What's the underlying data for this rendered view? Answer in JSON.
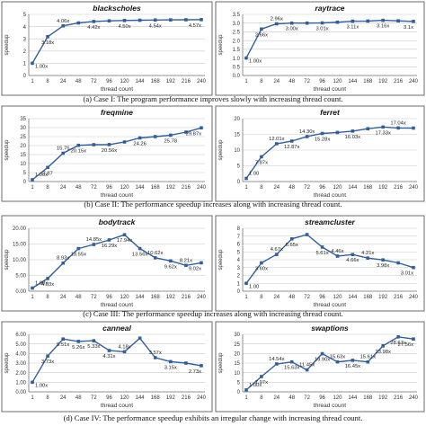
{
  "chart_data": [
    {
      "type": "line",
      "title": "blackscholes",
      "ylabel": "speedup",
      "xlabel": "thread count",
      "categories": [
        "1",
        "8",
        "24",
        "48",
        "72",
        "96",
        "120",
        "144",
        "168",
        "192",
        "216",
        "240"
      ],
      "values": [
        1.0,
        3.18,
        4.06,
        4.3,
        4.42,
        4.47,
        4.5,
        4.52,
        4.54,
        4.55,
        4.56,
        4.57
      ],
      "data_labels": {
        "0": "1.00x",
        "1": "3.18x",
        "2": "4.06x",
        "4": "4.42x",
        "6": "4.50x",
        "8": "4.54x",
        "11": "4.57x"
      },
      "ylim": [
        0,
        5
      ],
      "yticks": [
        "0",
        "1",
        "2",
        "3",
        "4",
        "5"
      ],
      "grid": true,
      "color": "#2f5f9c"
    },
    {
      "type": "line",
      "title": "raytrace",
      "ylabel": "speedup",
      "xlabel": "thread count",
      "categories": [
        "1",
        "8",
        "24",
        "48",
        "72",
        "96",
        "120",
        "144",
        "168",
        "192",
        "216",
        "240"
      ],
      "values": [
        1.0,
        2.66,
        2.96,
        3.0,
        3.0,
        3.01,
        3.05,
        3.11,
        3.12,
        3.16,
        3.13,
        3.1
      ],
      "data_labels": {
        "0": "1.00x",
        "1": "2.66x",
        "2": "2.96x",
        "3": "3.00x",
        "5": "3.01x",
        "7": "3.11x",
        "9": "3.16x",
        "11": "3.1x"
      },
      "ylim": [
        0,
        3.5
      ],
      "yticks": [
        "0.0",
        "0.5",
        "1.0",
        "1.5",
        "2.0",
        "2.5",
        "3.0",
        "3.5"
      ],
      "grid": true,
      "color": "#2f5f9c"
    },
    {
      "type": "line",
      "title": "freqmine",
      "ylabel": "speedup",
      "xlabel": "thread count",
      "categories": [
        "1",
        "8",
        "24",
        "48",
        "72",
        "96",
        "120",
        "144",
        "168",
        "192",
        "216",
        "240"
      ],
      "values": [
        1.0,
        7.87,
        15.75,
        20.15,
        20.5,
        20.56,
        22.0,
        24.26,
        25.0,
        25.78,
        27.5,
        29.87
      ],
      "data_labels": {
        "0": "1.00x",
        "1": "7.87",
        "2": "15.75",
        "3": "20.15x",
        "5": "20.56x",
        "7": "24.26",
        "9": "25.78",
        "11": "29.87x"
      },
      "ylim": [
        0,
        35
      ],
      "yticks": [
        "0",
        "5",
        "10",
        "15",
        "20",
        "25",
        "30",
        "35"
      ],
      "grid": true,
      "color": "#2f5f9c"
    },
    {
      "type": "line",
      "title": "ferret",
      "ylabel": "speedup",
      "xlabel": "thread count",
      "categories": [
        "1",
        "8",
        "24",
        "48",
        "72",
        "96",
        "120",
        "144",
        "168",
        "192",
        "216",
        "240"
      ],
      "values": [
        1.0,
        7.87,
        12.01,
        12.87,
        14.3,
        15.28,
        15.6,
        16.03,
        16.8,
        17.33,
        17.04,
        17.0
      ],
      "data_labels": {
        "0": "1.00",
        "1": "7.87x",
        "2": "12.01x",
        "3": "12.87x",
        "4": "14.30x",
        "5": "15.28x",
        "7": "16.03x",
        "9": "17.33x",
        "10": "17.04x"
      },
      "ylim": [
        0,
        20
      ],
      "yticks": [
        "0",
        "5",
        "10",
        "15",
        "20"
      ],
      "grid": true,
      "color": "#2f5f9c"
    },
    {
      "type": "line",
      "title": "bodytrack",
      "ylabel": "speedup",
      "xlabel": "thread count",
      "categories": [
        "1",
        "8",
        "24",
        "48",
        "72",
        "96",
        "120",
        "144",
        "168",
        "192",
        "216",
        "240"
      ],
      "values": [
        1.0,
        4.03,
        8.93,
        13.55,
        14.85,
        16.29,
        17.94,
        13.56,
        10.62,
        9.62,
        8.21,
        9.02
      ],
      "data_labels": {
        "0": "1.00x",
        "1": "4.03x",
        "2": "8.93x",
        "3": "13.55x",
        "4": "14.85x",
        "5": "16.29x",
        "6": "17.94x",
        "7": "13.56x",
        "8": "10.62x",
        "9": "9.62x",
        "10": "8.21x",
        "11": "9.02x"
      },
      "ylim": [
        0,
        20
      ],
      "yticks": [
        "0.00",
        "5.00",
        "10.00",
        "15.00",
        "20.00"
      ],
      "grid": true,
      "color": "#2f5f9c"
    },
    {
      "type": "line",
      "title": "streamcluster",
      "ylabel": "speedup",
      "xlabel": "thread count",
      "categories": [
        "1",
        "8",
        "24",
        "48",
        "72",
        "96",
        "120",
        "144",
        "168",
        "192",
        "216",
        "240"
      ],
      "values": [
        1.0,
        3.6,
        4.67,
        6.65,
        7.2,
        5.61,
        4.46,
        4.66,
        4.21,
        3.98,
        3.6,
        3.01
      ],
      "data_labels": {
        "0": "1.00",
        "1": "3.60x",
        "2": "4.67x",
        "3": "6.65x",
        "5": "5.61x",
        "6": "4.46x",
        "7": "4.66x",
        "8": "4.21x",
        "9": "3.98x",
        "11": "3.01x"
      },
      "ylim": [
        0,
        8
      ],
      "yticks": [
        "0",
        "1",
        "2",
        "3",
        "4",
        "5",
        "6",
        "7",
        "8"
      ],
      "grid": true,
      "color": "#2f5f9c"
    },
    {
      "type": "line",
      "title": "canneal",
      "ylabel": "speedup",
      "xlabel": "thread count",
      "categories": [
        "1",
        "8",
        "24",
        "48",
        "72",
        "96",
        "120",
        "144",
        "168",
        "192",
        "216",
        "240"
      ],
      "values": [
        1.0,
        3.73,
        5.51,
        5.26,
        5.33,
        4.31,
        4.18,
        5.6,
        3.57,
        3.15,
        3.0,
        2.73
      ],
      "data_labels": {
        "0": "1.00x",
        "1": "3.73x",
        "2": "5.51x",
        "3": "5.26x",
        "4": "5.33x",
        "5": "4.31x",
        "6": "4.18x",
        "8": "3.57x",
        "9": "3.15x",
        "11": "2.73x"
      },
      "ylim": [
        0,
        6
      ],
      "yticks": [
        "0.00",
        "1.00",
        "2.00",
        "3.00",
        "4.00",
        "5.00",
        "6.00"
      ],
      "grid": true,
      "color": "#2f5f9c"
    },
    {
      "type": "line",
      "title": "swaptions",
      "ylabel": "speedup",
      "xlabel": "thread count",
      "categories": [
        "1",
        "8",
        "24",
        "48",
        "72",
        "96",
        "120",
        "144",
        "168",
        "192",
        "216",
        "240"
      ],
      "values": [
        1.0,
        7.97,
        14.54,
        15.63,
        11.45,
        19.9,
        15.63,
        16.45,
        15.61,
        23.98,
        28.67,
        27.56
      ],
      "data_labels": {
        "0": "1.00x",
        "1": "7.97x",
        "2": "14.54x",
        "3": "15.63x",
        "4": "11.45x",
        "5": "19.90x",
        "6": "15.63x",
        "7": "16.45x",
        "8": "15.61x",
        "9": "23.98x",
        "10": "28.67x",
        "11": "27.56x"
      },
      "ylim": [
        0,
        30
      ],
      "yticks": [
        "0",
        "5",
        "10",
        "15",
        "20",
        "25",
        "30"
      ],
      "grid": true,
      "color": "#2f5f9c"
    }
  ],
  "captions": [
    "(a)    Case I: The program performance improves slowly with increasing thread count.",
    "(b)   Case II: The performance speedup increases along with increasing thread count.",
    "(c)   Case III: The performance speedup increases along with increasing thread count.",
    "(d)   Case IV: The performance speedup exhibits an irregular change with increasing thread count."
  ]
}
